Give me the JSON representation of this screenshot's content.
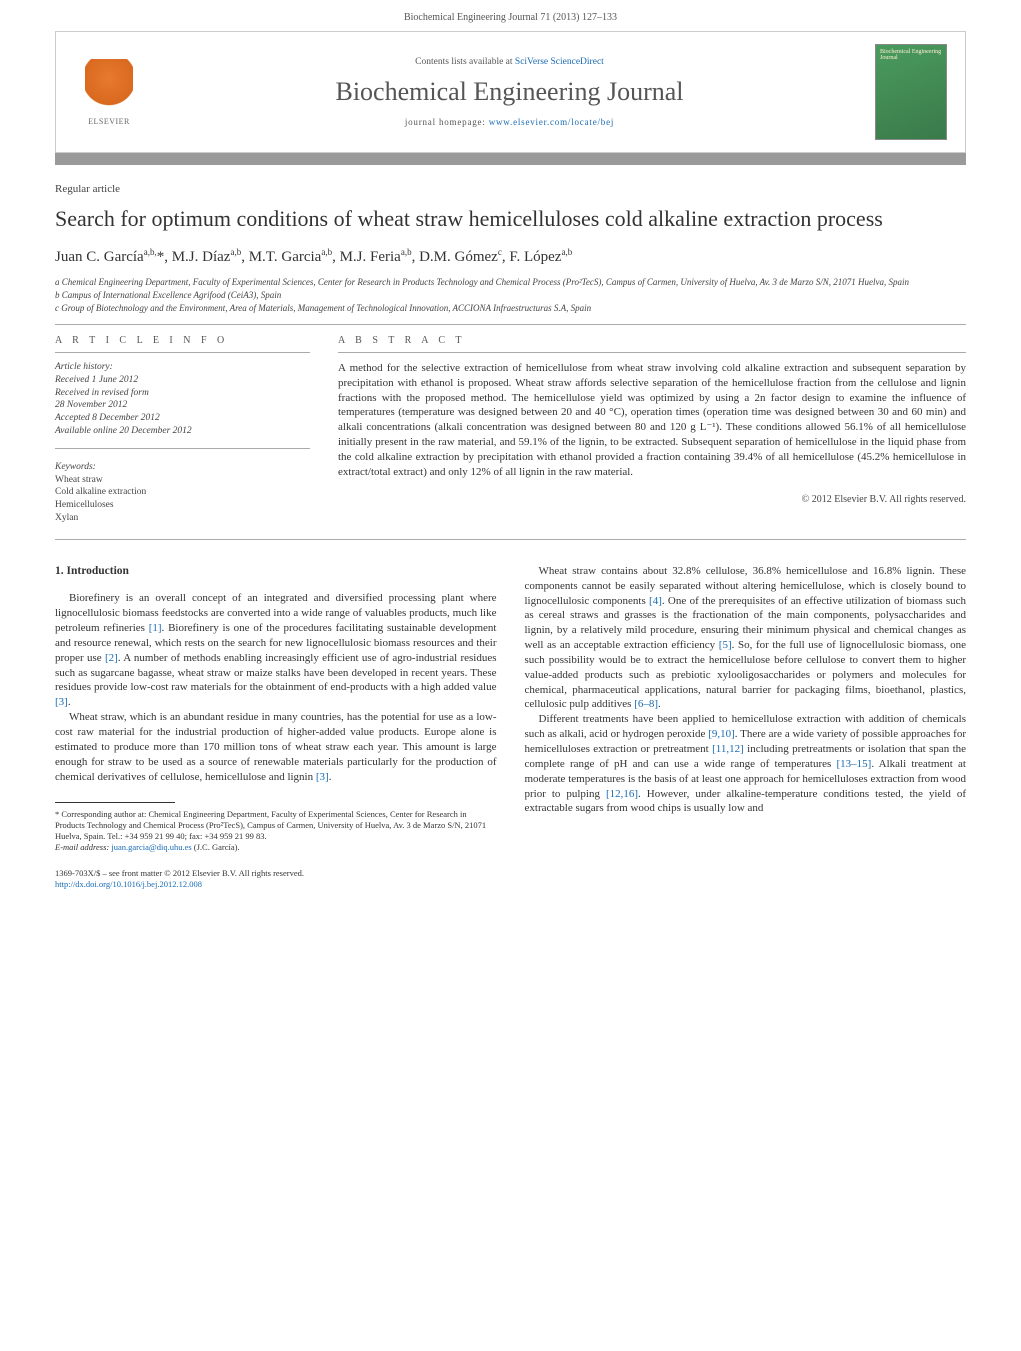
{
  "header": {
    "running_head": "Biochemical Engineering Journal 71 (2013) 127–133",
    "contents_prefix": "Contents lists available at ",
    "contents_link": "SciVerse ScienceDirect",
    "journal_title": "Biochemical Engineering Journal",
    "homepage_prefix": "journal homepage: ",
    "homepage_url": "www.elsevier.com/locate/bej",
    "elsevier_label": "ELSEVIER",
    "cover_label": "Biochemical Engineering Journal"
  },
  "article": {
    "type": "Regular article",
    "title": "Search for optimum conditions of wheat straw hemicelluloses cold alkaline extraction process",
    "authors_html": "Juan C. García<sup>a,b,</sup>*, M.J. Díaz<sup>a,b</sup>, M.T. Garcia<sup>a,b</sup>, M.J. Feria<sup>a,b</sup>, D.M. Gómez<sup>c</sup>, F. López<sup>a,b</sup>",
    "affiliations": [
      "a Chemical Engineering Department, Faculty of Experimental Sciences, Center for Research in Products Technology and Chemical Process (Pro²TecS), Campus of Carmen, University of Huelva, Av. 3 de Marzo S/N, 21071 Huelva, Spain",
      "b Campus of International Excellence Agrifood (CeiA3), Spain",
      "c Group of Biotechnology and the Environment, Area of Materials, Management of Technological Innovation, ACCIONA Infraestructuras S.A, Spain"
    ]
  },
  "info": {
    "heading": "A R T I C L E   I N F O",
    "history_label": "Article history:",
    "history": [
      "Received 1 June 2012",
      "Received in revised form",
      "28 November 2012",
      "Accepted 8 December 2012",
      "Available online 20 December 2012"
    ],
    "keywords_label": "Keywords:",
    "keywords": [
      "Wheat straw",
      "Cold alkaline extraction",
      "Hemicelluloses",
      "Xylan"
    ]
  },
  "abstract": {
    "heading": "A B S T R A C T",
    "text": "A method for the selective extraction of hemicellulose from wheat straw involving cold alkaline extraction and subsequent separation by precipitation with ethanol is proposed. Wheat straw affords selective separation of the hemicellulose fraction from the cellulose and lignin fractions with the proposed method. The hemicellulose yield was optimized by using a 2n factor design to examine the influence of temperatures (temperature was designed between 20 and 40 °C), operation times (operation time was designed between 30 and 60 min) and alkali concentrations (alkali concentration was designed between 80 and 120 g L⁻¹). These conditions allowed 56.1% of all hemicellulose initially present in the raw material, and 59.1% of the lignin, to be extracted. Subsequent separation of hemicellulose in the liquid phase from the cold alkaline extraction by precipitation with ethanol provided a fraction containing 39.4% of all hemicellulose (45.2% hemicellulose in extract/total extract) and only 12% of all lignin in the raw material.",
    "copyright": "© 2012 Elsevier B.V. All rights reserved."
  },
  "intro": {
    "heading": "1.  Introduction",
    "p1": "Biorefinery is an overall concept of an integrated and diversified processing plant where lignocellulosic biomass feedstocks are converted into a wide range of valuables products, much like petroleum refineries [1]. Biorefinery is one of the procedures facilitating sustainable development and resource renewal, which rests on the search for new lignocellulosic biomass resources and their proper use [2]. A number of methods enabling increasingly efficient use of agro-industrial residues such as sugarcane bagasse, wheat straw or maize stalks have been developed in recent years. These residues provide low-cost raw materials for the obtainment of end-products with a high added value [3].",
    "p2": "Wheat straw, which is an abundant residue in many countries, has the potential for use as a low-cost raw material for the industrial production of higher-added value products. Europe alone is estimated to produce more than 170 million tons of wheat straw each year. This amount is large enough for straw to be used as a source of renewable materials particularly for the production of chemical derivatives of cellulose, hemicellulose and lignin [3].",
    "p3": "Wheat straw contains about 32.8% cellulose, 36.8% hemicellulose and 16.8% lignin. These components cannot be easily separated without altering hemicellulose, which is closely bound to lignocellulosic components [4]. One of the prerequisites of an effective utilization of biomass such as cereal straws and grasses is the fractionation of the main components, polysaccharides and lignin, by a relatively mild procedure, ensuring their minimum physical and chemical changes as well as an acceptable extraction efficiency [5]. So, for the full use of lignocellulosic biomass, one such possibility would be to extract the hemicellulose before cellulose to convert them to higher value-added products such as prebiotic xylooligosaccharides or polymers and molecules for chemical, pharmaceutical applications, natural barrier for packaging films, bioethanol, plastics, cellulosic pulp additives [6–8].",
    "p4": "Different treatments have been applied to hemicellulose extraction with addition of chemicals such as alkali, acid or hydrogen peroxide [9,10]. There are a wide variety of possible approaches for hemicelluloses extraction or pretreatment [11,12] including pretreatments or isolation that span the complete range of pH and can use a wide range of temperatures [13–15]. Alkali treatment at moderate temperatures is the basis of at least one approach for hemicelluloses extraction from wood prior to pulping [12,16]. However, under alkaline-temperature conditions tested, the yield of extractable sugars from wood chips is usually low and"
  },
  "footnote": {
    "corr": "* Corresponding author at: Chemical Engineering Department, Faculty of Experimental Sciences, Center for Research in Products Technology and Chemical Process (Pro²TecS), Campus of Carmen, University of Huelva, Av. 3 de Marzo S/N, 21071 Huelva, Spain. Tel.: +34 959 21 99 40; fax: +34 959 21 99 83.",
    "email_label": "E-mail address: ",
    "email": "juan.garcia@diq.uhu.es",
    "email_suffix": " (J.C. García)."
  },
  "footer": {
    "line1": "1369-703X/$ – see front matter © 2012 Elsevier B.V. All rights reserved.",
    "doi": "http://dx.doi.org/10.1016/j.bej.2012.12.008"
  },
  "refs": {
    "r1": "[1]",
    "r2": "[2]",
    "r3": "[3]",
    "r4": "[4]",
    "r5": "[5]",
    "r68": "[6–8]",
    "r910": "[9,10]",
    "r1112": "[11,12]",
    "r1315": "[13–15]",
    "r1216": "[12,16]"
  },
  "colors": {
    "link": "#1a6bb3",
    "rule": "#9a9a9a",
    "text": "#333333",
    "elsevier_orange": "#e67a2e",
    "cover_green": "#4a9b5e"
  }
}
